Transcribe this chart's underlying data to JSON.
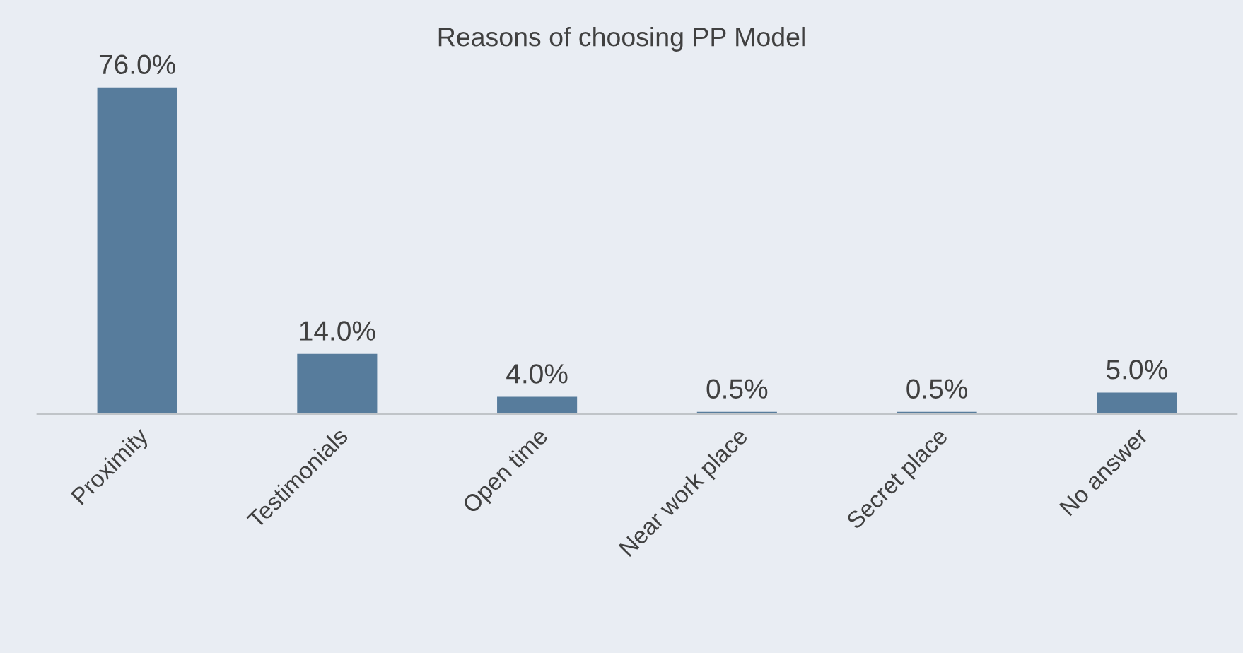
{
  "chart_data": {
    "type": "bar",
    "title": "Reasons of choosing PP Model",
    "categories": [
      "Proximity",
      "Testimonials",
      "Open time",
      "Near work place",
      "Secret place",
      "No answer"
    ],
    "values": [
      76.0,
      14.0,
      4.0,
      0.5,
      0.5,
      5.0
    ],
    "value_labels": [
      "76.0%",
      "14.0%",
      "4.0%",
      "0.5%",
      "0.5%",
      "5.0%"
    ],
    "color": "#577c9c",
    "tick_labels": "x"
  }
}
